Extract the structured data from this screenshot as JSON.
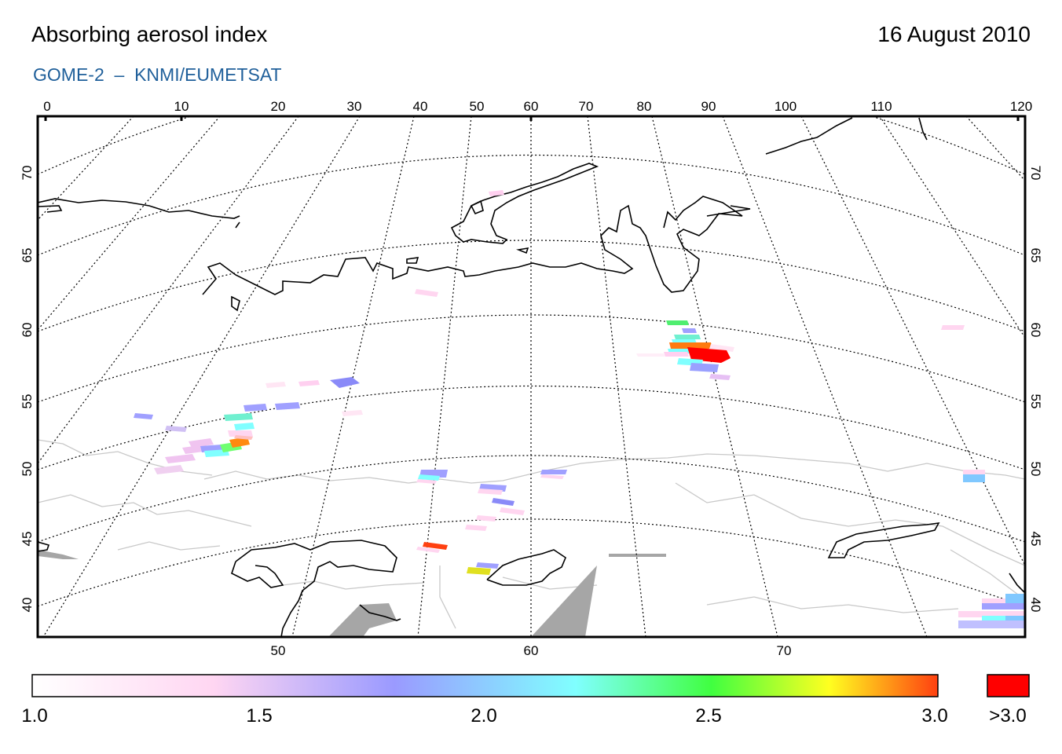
{
  "header": {
    "title": "Absorbing aerosol index",
    "date": "16 August 2010",
    "subtitle": "GOME-2  –  KNMI/EUMETSAT"
  },
  "map": {
    "top_lon_labels": [
      "0",
      "10",
      "20",
      "30",
      "40",
      "50",
      "60",
      "70",
      "80",
      "90",
      "100",
      "110",
      "120"
    ],
    "bottom_lon_labels": [
      "50",
      "60",
      "70"
    ],
    "lat_labels": [
      "70",
      "65",
      "60",
      "55",
      "50",
      "45",
      "40"
    ],
    "projection": "polar stereographic, central meridian 60E",
    "graticule": "dotted",
    "coastline_color": "#000000",
    "border_color": "#c8c8c8",
    "no_data_color": "#a6a6a6",
    "aerosol_hotspots": [
      {
        "area": "Western Siberia (approx. 58N 88E)",
        "max_index": ">3.0"
      },
      {
        "area": "Central Europe (approx. 52N 15E)",
        "max_index": "3.0"
      },
      {
        "area": "Caspian region (approx. 44N 55E)",
        "max_index": "3.0"
      }
    ]
  },
  "colorbar": {
    "tick_labels": [
      "1.0",
      "1.5",
      "2.0",
      "2.5",
      "3.0"
    ],
    "overflow_label": ">3.0",
    "overflow_color": "#ff0000",
    "gradient_stops": [
      "#ffffff",
      "#ffd0f0",
      "#9a9aff",
      "#80ffff",
      "#40ff40",
      "#ffff20",
      "#ff4010"
    ]
  }
}
